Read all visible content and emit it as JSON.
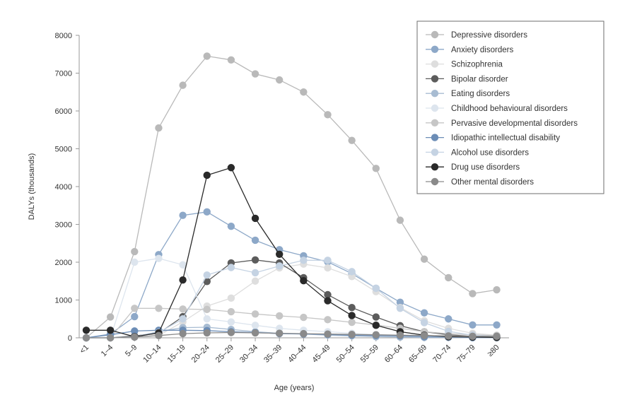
{
  "chart_data": {
    "type": "line",
    "title": "",
    "xlabel": "Age (years)",
    "ylabel": "DALYs (thousands)",
    "ylim": [
      0,
      8000
    ],
    "yticks": [
      0,
      1000,
      2000,
      3000,
      4000,
      5000,
      6000,
      7000,
      8000
    ],
    "categories": [
      "<1",
      "1–4",
      "5–9",
      "10–14",
      "15–19",
      "20–24",
      "25–29",
      "30–34",
      "35–39",
      "40–44",
      "45–49",
      "50–54",
      "55–59",
      "60–64",
      "65–69",
      "70–74",
      "75–79",
      "≥80"
    ],
    "legend_position": "top-right",
    "series": [
      {
        "name": "Depressive disorders",
        "color": "#b9b9b9",
        "values": [
          0,
          550,
          2280,
          5550,
          6680,
          7450,
          7350,
          6980,
          6820,
          6500,
          5900,
          5220,
          4480,
          3110,
          2080,
          1590,
          1170,
          1270
        ]
      },
      {
        "name": "Anxiety disorders",
        "color": "#8da8c8",
        "values": [
          0,
          100,
          560,
          2200,
          3240,
          3330,
          2950,
          2580,
          2330,
          2170,
          2010,
          1700,
          1310,
          940,
          660,
          500,
          340,
          340
        ]
      },
      {
        "name": "Schizophrenia",
        "color": "#dedede",
        "values": [
          0,
          0,
          20,
          60,
          420,
          840,
          1050,
          1500,
          1850,
          1950,
          1850,
          1620,
          1220,
          800,
          450,
          250,
          120,
          70
        ]
      },
      {
        "name": "Bipolar disorder",
        "color": "#5c5c5c",
        "values": [
          0,
          0,
          50,
          120,
          560,
          1490,
          1980,
          2060,
          1980,
          1590,
          1140,
          800,
          550,
          320,
          160,
          80,
          40,
          20
        ]
      },
      {
        "name": "Eating disorders",
        "color": "#a8bcd2",
        "values": [
          0,
          0,
          30,
          160,
          270,
          280,
          220,
          160,
          120,
          100,
          70,
          50,
          30,
          20,
          10,
          10,
          0,
          0
        ]
      },
      {
        "name": "Childhood behavioural disorders",
        "color": "#dde5ee",
        "values": [
          0,
          0,
          2000,
          2100,
          1930,
          500,
          420,
          330,
          250,
          200,
          160,
          120,
          80,
          60,
          40,
          20,
          10,
          10
        ]
      },
      {
        "name": "Pervasive developmental disorders",
        "color": "#c6c6c6",
        "values": [
          0,
          0,
          780,
          780,
          760,
          750,
          690,
          630,
          580,
          540,
          480,
          410,
          340,
          250,
          160,
          110,
          80,
          60
        ]
      },
      {
        "name": "Idiopathic intellectual disability",
        "color": "#6c8db6",
        "values": [
          0,
          80,
          180,
          200,
          200,
          190,
          160,
          140,
          110,
          100,
          90,
          70,
          60,
          50,
          30,
          20,
          10,
          10
        ]
      },
      {
        "name": "Alcohol use disorders",
        "color": "#c5d3e3",
        "values": [
          0,
          0,
          20,
          140,
          500,
          1660,
          1860,
          1720,
          1900,
          2050,
          2050,
          1750,
          1310,
          780,
          400,
          170,
          70,
          30
        ]
      },
      {
        "name": "Drug use disorders",
        "color": "#2a2a2a",
        "values": [
          200,
          200,
          30,
          130,
          1530,
          4300,
          4500,
          3160,
          2210,
          1510,
          980,
          590,
          330,
          160,
          70,
          30,
          20,
          10
        ]
      },
      {
        "name": "Other mental disorders",
        "color": "#8a8a8a",
        "values": [
          0,
          0,
          20,
          60,
          110,
          130,
          140,
          130,
          120,
          110,
          100,
          90,
          80,
          70,
          60,
          50,
          40,
          40
        ]
      }
    ]
  }
}
